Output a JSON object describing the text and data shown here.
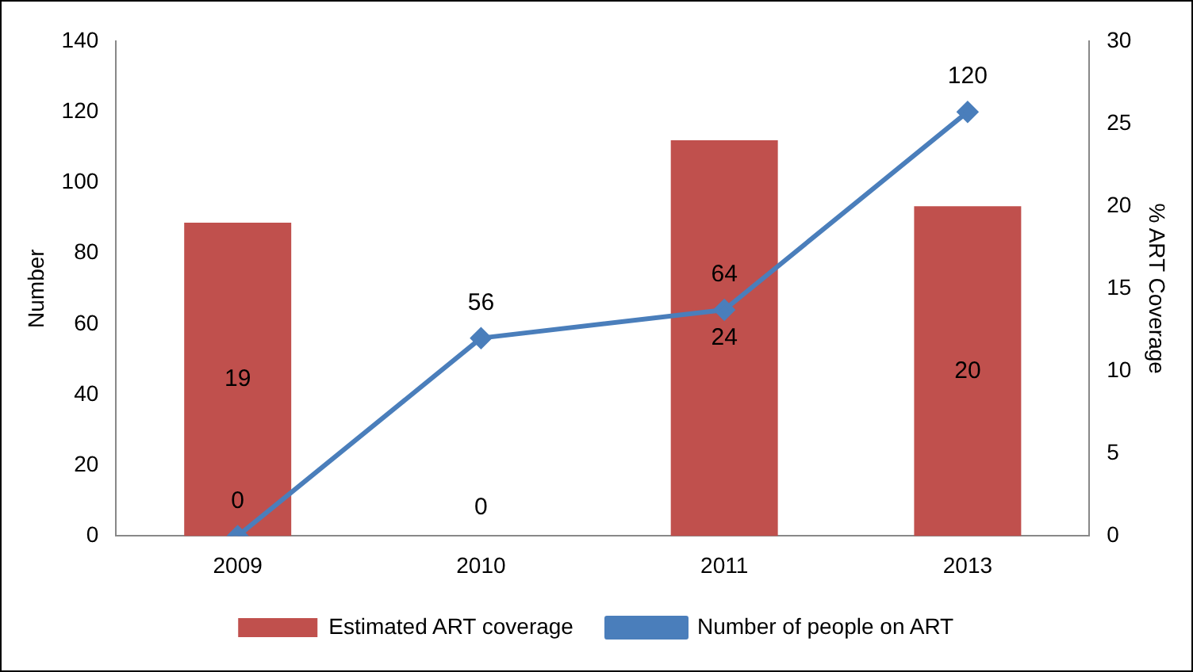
{
  "chart_data": {
    "type": "bar",
    "ylabel": "Number",
    "y2label": "% ART Coverage",
    "categories": [
      "2009",
      "2010",
      "2011",
      "2013"
    ],
    "series": [
      {
        "name": "Estimated ART coverage",
        "axis": "y2",
        "color": "#c0504d",
        "values": [
          19,
          0,
          24,
          20
        ]
      },
      {
        "name": "Number of people on ART",
        "type": "line",
        "axis": "y",
        "color": "#4a7ebb",
        "values": [
          0,
          56,
          64,
          120
        ],
        "marker": "diamond"
      }
    ],
    "ylim": [
      0,
      140
    ],
    "yticks": [
      0,
      20,
      40,
      60,
      80,
      100,
      120,
      140
    ],
    "y2lim": [
      0,
      30
    ],
    "y2ticks": [
      0,
      5,
      10,
      15,
      20,
      25,
      30
    ],
    "data_labels": true,
    "legend": "bottom",
    "grid": false
  }
}
